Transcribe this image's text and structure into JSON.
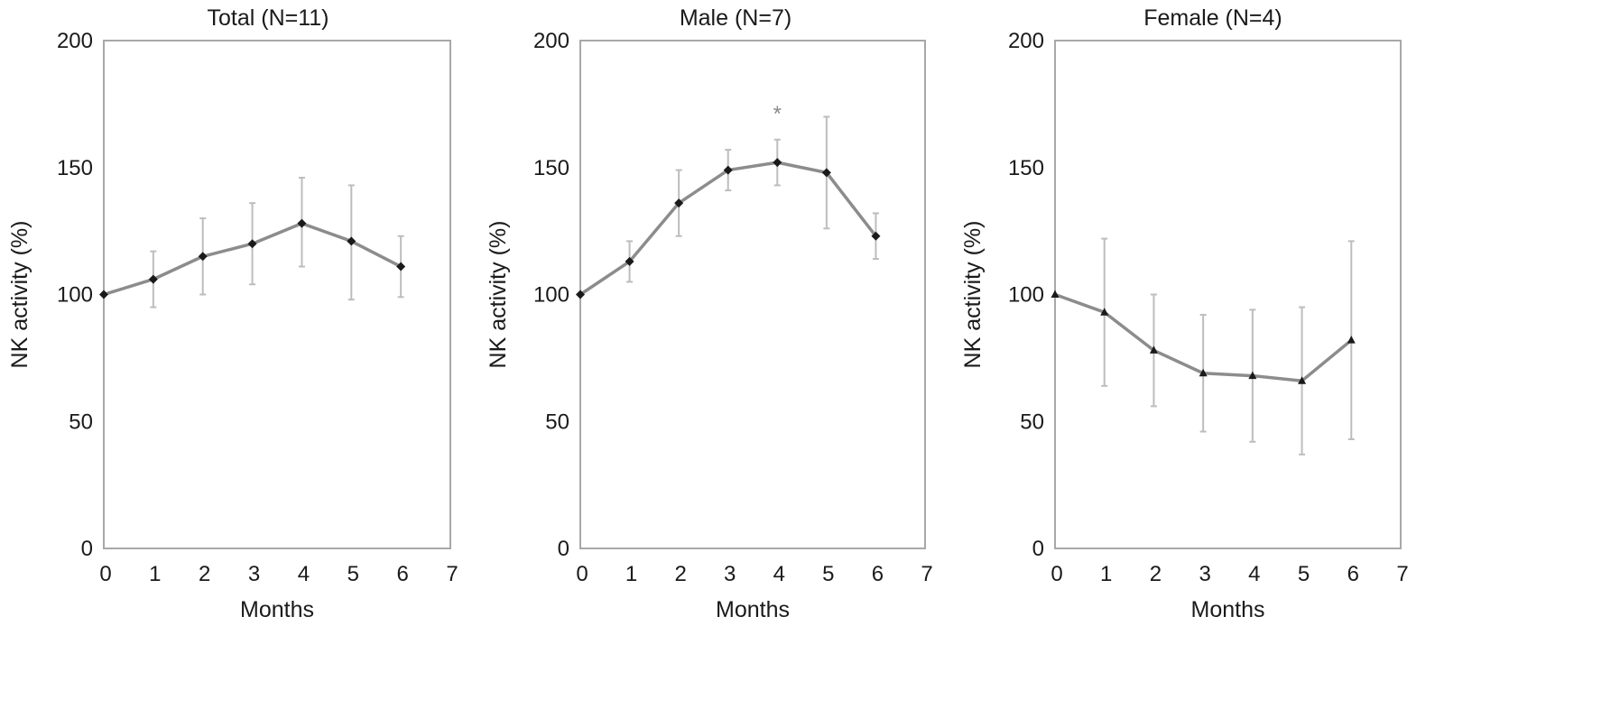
{
  "chart_data": [
    {
      "type": "line",
      "title": "Total (N=11)",
      "xlabel": "Months",
      "ylabel": "NK activity (%)",
      "xlim": [
        0,
        7
      ],
      "ylim": [
        0,
        200
      ],
      "xticks": [
        "0",
        "1",
        "2",
        "3",
        "4",
        "5",
        "6",
        "7"
      ],
      "yticks": [
        "0",
        "50",
        "100",
        "150",
        "200"
      ],
      "grid": false,
      "series": [
        {
          "marker": "diamond",
          "x": [
            0,
            1,
            2,
            3,
            4,
            5,
            6
          ],
          "values": [
            100,
            106,
            115,
            120,
            128,
            121,
            111
          ],
          "err_low": [
            100,
            95,
            100,
            104,
            111,
            98,
            99
          ],
          "err_high": [
            100,
            117,
            130,
            136,
            146,
            143,
            123
          ]
        }
      ],
      "annotations": []
    },
    {
      "type": "line",
      "title": "Male (N=7)",
      "xlabel": "Months",
      "ylabel": "NK activity (%)",
      "xlim": [
        0,
        7
      ],
      "ylim": [
        0,
        200
      ],
      "xticks": [
        "0",
        "1",
        "2",
        "3",
        "4",
        "5",
        "6",
        "7"
      ],
      "yticks": [
        "0",
        "50",
        "100",
        "150",
        "200"
      ],
      "grid": false,
      "series": [
        {
          "marker": "diamond",
          "x": [
            0,
            1,
            2,
            3,
            4,
            5,
            6
          ],
          "values": [
            100,
            113,
            136,
            149,
            152,
            148,
            123
          ],
          "err_low": [
            100,
            105,
            123,
            141,
            143,
            126,
            114
          ],
          "err_high": [
            100,
            121,
            149,
            157,
            161,
            170,
            132
          ]
        }
      ],
      "annotations": [
        {
          "text": "*",
          "x": 4,
          "y": 172
        }
      ]
    },
    {
      "type": "line",
      "title": "Female (N=4)",
      "xlabel": "Months",
      "ylabel": "NK activity (%)",
      "xlim": [
        0,
        7
      ],
      "ylim": [
        0,
        200
      ],
      "xticks": [
        "0",
        "1",
        "2",
        "3",
        "4",
        "5",
        "6",
        "7"
      ],
      "yticks": [
        "0",
        "50",
        "100",
        "150",
        "200"
      ],
      "grid": false,
      "series": [
        {
          "marker": "triangle",
          "x": [
            0,
            1,
            2,
            3,
            4,
            5,
            6
          ],
          "values": [
            100,
            93,
            78,
            69,
            68,
            66,
            82
          ],
          "err_low": [
            100,
            64,
            56,
            46,
            42,
            37,
            43
          ],
          "err_high": [
            100,
            122,
            100,
            92,
            94,
            95,
            121
          ]
        }
      ],
      "annotations": []
    }
  ],
  "colors": {
    "line": "#8c8c8c",
    "error_bar": "#bdbdbd",
    "marker": "#1a1a1a",
    "axis_frame": "#a8a8a8",
    "annotation": "#8a8a8a"
  }
}
